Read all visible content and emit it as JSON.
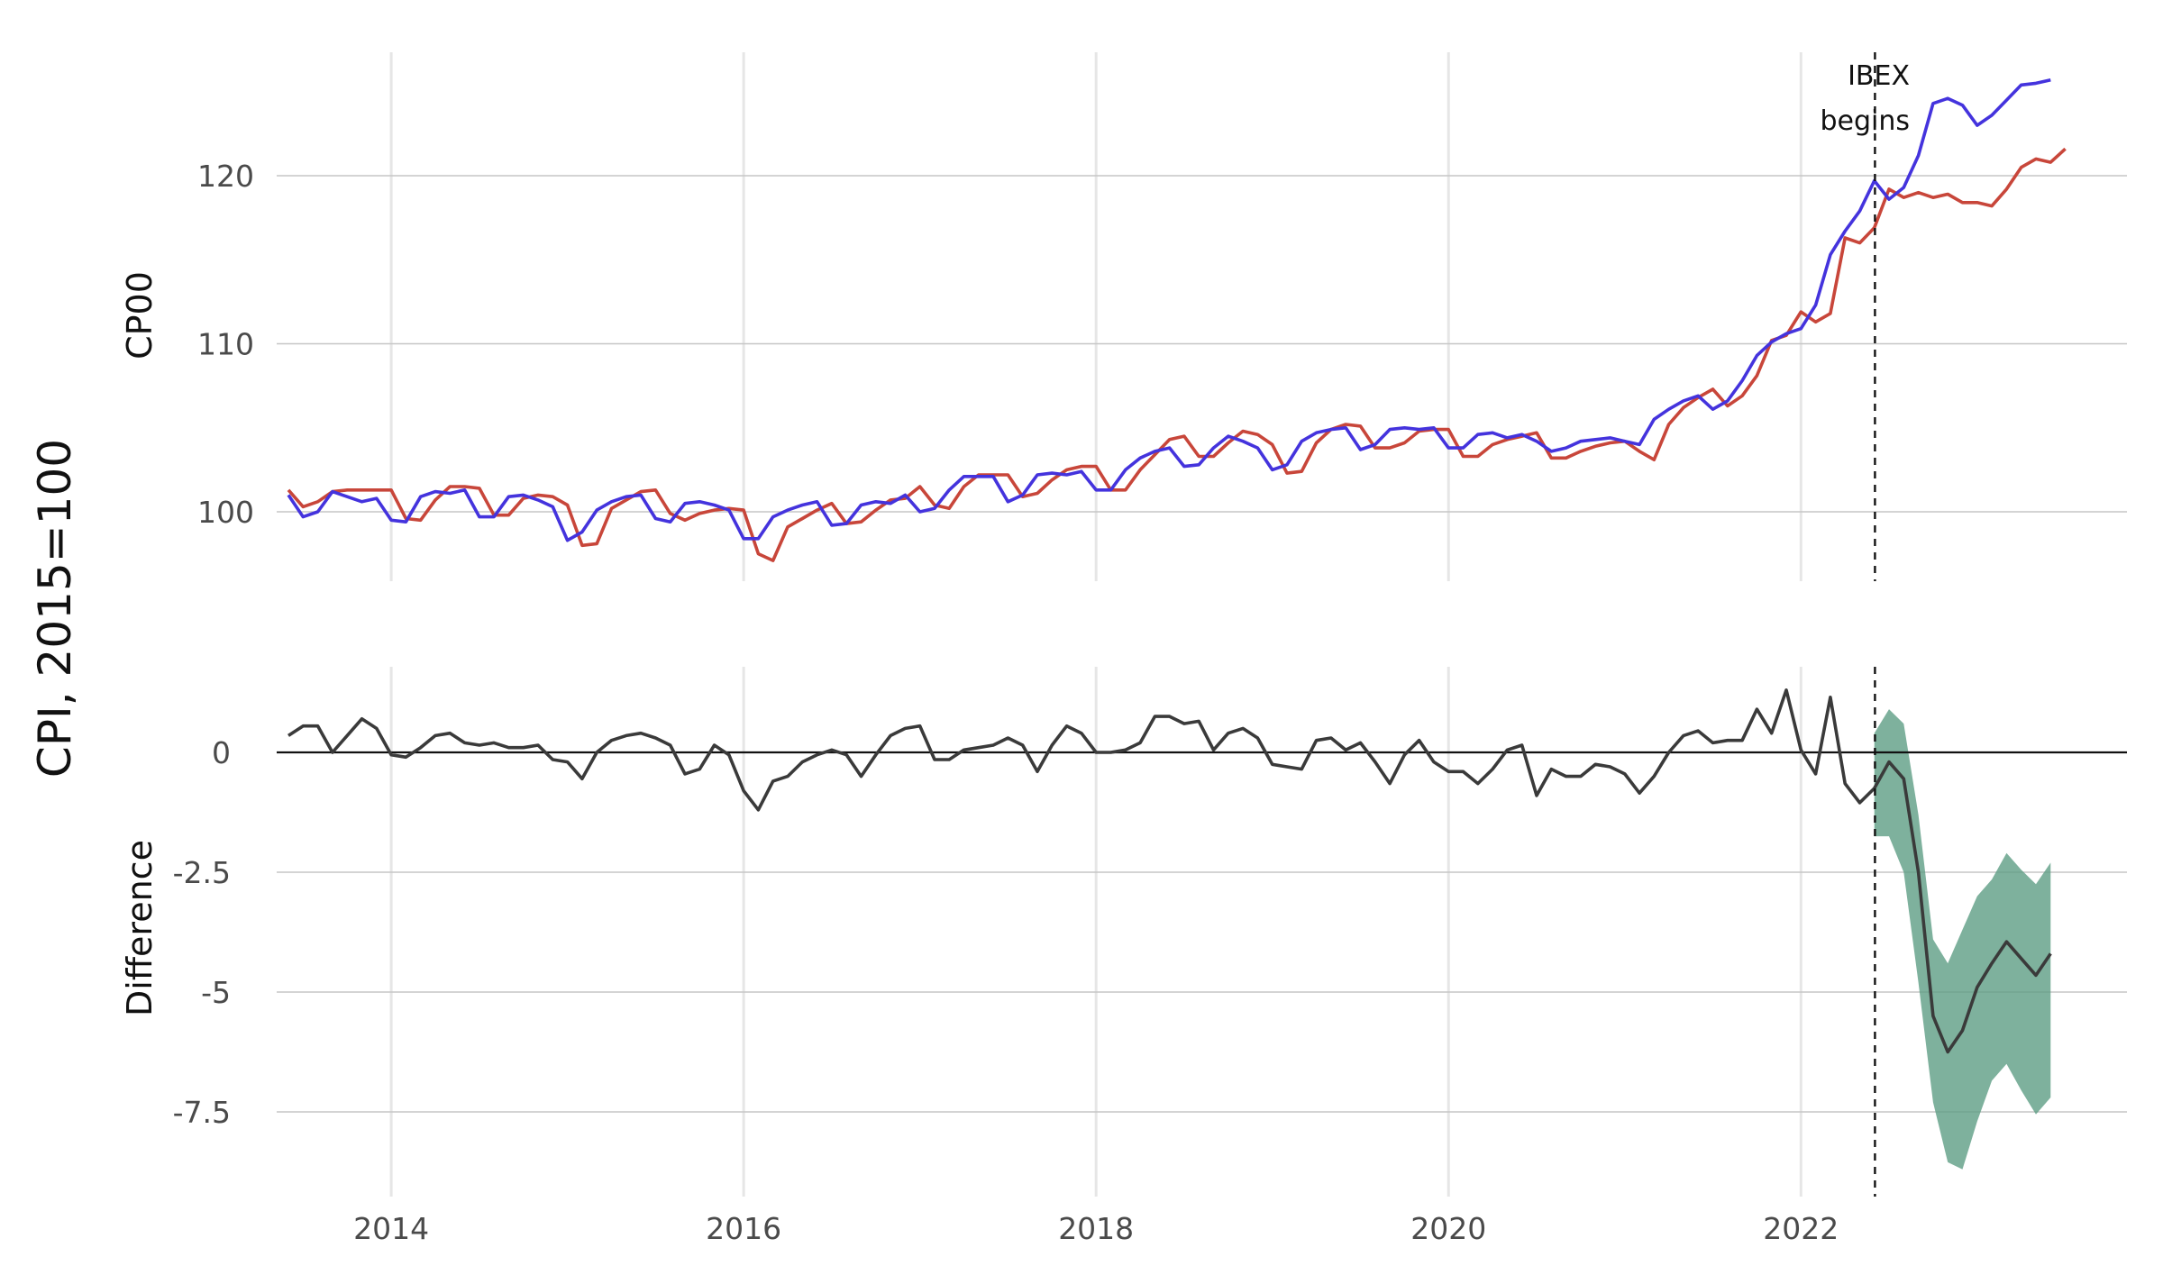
{
  "colors": {
    "series_a": "#c8463a",
    "series_b": "#4433dd",
    "difference": "#3a3a3a",
    "band": "#5e9e84",
    "grid_v": "#e6e6e6",
    "grid_h": "#c6c6c6",
    "zero_line": "#111111"
  },
  "chart_data": [
    {
      "type": "line",
      "panel": "top",
      "title": "",
      "shared_ylabel": "CPI, 2015=100",
      "ylabel": "CP00",
      "xlabel": "",
      "x_start": "2013-06",
      "x_step": "month",
      "xlim": [
        2013.35,
        2023.85
      ],
      "ylim": [
        95.8,
        126.8
      ],
      "yticks": [
        100,
        110,
        120
      ],
      "xticks": [
        2014,
        2016,
        2018,
        2020,
        2022
      ],
      "grid": true,
      "legend": "none",
      "annotation": {
        "text_line1": "IBEX",
        "text_line2": "begins",
        "x": 2022.42
      },
      "series": [
        {
          "color_key": "series_a",
          "values": [
            101.3,
            100.3,
            100.6,
            101.2,
            101.3,
            101.3,
            101.3,
            101.3,
            99.6,
            99.5,
            100.7,
            101.5,
            101.5,
            101.4,
            99.8,
            99.8,
            100.8,
            101.0,
            100.9,
            100.4,
            98.0,
            98.1,
            100.2,
            100.7,
            101.2,
            101.3,
            99.9,
            99.5,
            99.9,
            100.1,
            100.2,
            100.1,
            97.5,
            97.1,
            99.1,
            99.6,
            100.1,
            100.5,
            99.3,
            99.4,
            100.1,
            100.7,
            100.8,
            101.5,
            100.4,
            100.2,
            101.5,
            102.2,
            102.2,
            102.2,
            100.9,
            101.1,
            101.9,
            102.5,
            102.7,
            102.7,
            101.3,
            101.3,
            102.5,
            103.4,
            104.3,
            104.5,
            103.3,
            103.3,
            104.1,
            104.8,
            104.6,
            104.0,
            102.3,
            102.4,
            104.1,
            104.9,
            105.2,
            105.1,
            103.8,
            103.8,
            104.1,
            104.8,
            104.9,
            104.9,
            103.3,
            103.3,
            104.0,
            104.3,
            104.5,
            104.7,
            103.2,
            103.2,
            103.6,
            103.9,
            104.1,
            104.2,
            103.6,
            103.1,
            105.2,
            106.2,
            106.8,
            107.3,
            106.3,
            106.9,
            108.1,
            110.2,
            110.5,
            111.9,
            111.3,
            111.8,
            116.3,
            116.0,
            116.9,
            119.2,
            118.7,
            119.0,
            118.7,
            118.9,
            118.4,
            118.4,
            118.2,
            119.2,
            120.5,
            121.0,
            120.8,
            121.6
          ]
        },
        {
          "color_key": "series_b",
          "values": [
            101.0,
            99.7,
            100.0,
            101.2,
            100.9,
            100.6,
            100.8,
            99.5,
            99.4,
            100.9,
            101.2,
            101.1,
            101.3,
            99.7,
            99.7,
            100.9,
            101.0,
            100.7,
            100.3,
            98.3,
            98.8,
            100.1,
            100.6,
            100.9,
            101.0,
            99.6,
            99.4,
            100.5,
            100.6,
            100.4,
            100.1,
            98.4,
            98.4,
            99.7,
            100.1,
            100.4,
            100.6,
            99.2,
            99.3,
            100.4,
            100.6,
            100.5,
            101.0,
            100.0,
            100.2,
            101.3,
            102.1,
            102.1,
            102.1,
            100.6,
            101.0,
            102.2,
            102.3,
            102.2,
            102.4,
            101.3,
            101.3,
            102.5,
            103.2,
            103.6,
            103.8,
            102.7,
            102.8,
            103.8,
            104.5,
            104.2,
            103.8,
            102.5,
            102.8,
            104.2,
            104.7,
            104.9,
            105.0,
            103.7,
            104.0,
            104.9,
            105.0,
            104.9,
            105.0,
            103.8,
            103.8,
            104.6,
            104.7,
            104.4,
            104.6,
            104.2,
            103.6,
            103.8,
            104.2,
            104.3,
            104.4,
            104.2,
            104.0,
            105.5,
            106.1,
            106.6,
            106.9,
            106.1,
            106.6,
            107.8,
            109.3,
            110.1,
            110.6,
            110.9,
            112.3,
            115.3,
            116.7,
            117.9,
            119.7,
            118.6,
            119.3,
            121.2,
            124.3,
            124.6,
            124.2,
            123.0,
            123.6,
            124.5,
            125.4,
            125.5,
            125.7
          ]
        }
      ]
    },
    {
      "type": "line",
      "panel": "bottom",
      "ylabel": "Difference",
      "xlabel": "",
      "x_start": "2013-06",
      "x_step": "month",
      "xlim": [
        2013.35,
        2023.85
      ],
      "ylim": [
        -9.1,
        1.8
      ],
      "yticks": [
        0,
        -2.5,
        -5,
        -7.5
      ],
      "ytick_labels": [
        "0",
        "-2.5",
        "-5",
        "-7.5"
      ],
      "xticks": [
        2014,
        2016,
        2018,
        2020,
        2022
      ],
      "xtick_labels": [
        "2014",
        "2016",
        "2018",
        "2020",
        "2022"
      ],
      "grid": true,
      "zero_line": true,
      "legend": "none",
      "series": [
        {
          "color_key": "difference",
          "values": [
            0.35,
            0.55,
            0.55,
            0.0,
            0.35,
            0.7,
            0.5,
            -0.05,
            -0.1,
            0.1,
            0.35,
            0.4,
            0.2,
            0.15,
            0.2,
            0.1,
            0.1,
            0.15,
            -0.15,
            -0.2,
            -0.55,
            0.0,
            0.25,
            0.35,
            0.4,
            0.3,
            0.15,
            -0.45,
            -0.35,
            0.15,
            -0.05,
            -0.8,
            -1.2,
            -0.6,
            -0.5,
            -0.2,
            -0.05,
            0.05,
            -0.05,
            -0.5,
            -0.05,
            0.35,
            0.5,
            0.55,
            -0.15,
            -0.15,
            0.05,
            0.1,
            0.15,
            0.3,
            0.15,
            -0.4,
            0.15,
            0.55,
            0.4,
            0.0,
            0.0,
            0.05,
            0.2,
            0.75,
            0.75,
            0.6,
            0.65,
            0.05,
            0.4,
            0.5,
            0.3,
            -0.25,
            -0.3,
            -0.35,
            0.25,
            0.3,
            0.05,
            0.2,
            -0.2,
            -0.65,
            -0.05,
            0.25,
            -0.2,
            -0.4,
            -0.4,
            -0.65,
            -0.35,
            0.05,
            0.15,
            -0.9,
            -0.35,
            -0.5,
            -0.5,
            -0.25,
            -0.3,
            -0.45,
            -0.85,
            -0.5,
            0.0,
            0.35,
            0.45,
            0.2,
            0.25,
            0.25,
            0.9,
            0.4,
            1.3,
            0.05,
            -0.45,
            1.15,
            -0.65,
            -1.05,
            -0.75,
            -0.2,
            -0.55,
            -2.5,
            -5.5,
            -6.25,
            -5.8,
            -4.9,
            -4.4,
            -3.95,
            -4.3,
            -4.65,
            -4.2
          ]
        }
      ],
      "band": {
        "color_key": "band",
        "start_index": 108,
        "upper": [
          0.4,
          0.9,
          0.6,
          -1.3,
          -3.9,
          -4.4,
          -3.7,
          -3.0,
          -2.65,
          -2.1,
          -2.45,
          -2.75,
          -2.3
        ],
        "lower": [
          -1.75,
          -1.75,
          -2.5,
          -4.8,
          -7.3,
          -8.55,
          -8.7,
          -7.7,
          -6.85,
          -6.5,
          -7.05,
          -7.55,
          -7.2
        ]
      }
    }
  ]
}
